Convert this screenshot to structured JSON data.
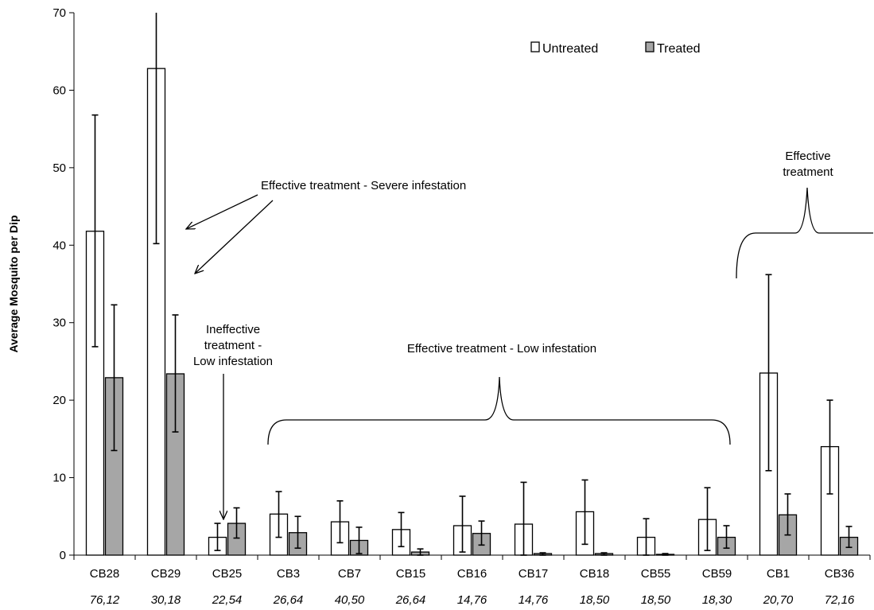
{
  "chart_data": {
    "type": "bar",
    "title": "",
    "xlabel": "",
    "ylabel": "Average Mosquito per Dip",
    "ylim": [
      0,
      70
    ],
    "yticks": [
      "0",
      "10",
      "20",
      "30",
      "40",
      "50",
      "60",
      "70"
    ],
    "grid": false,
    "legend_position": "top-right",
    "categories": [
      "CB28",
      "CB29",
      "CB25",
      "CB3",
      "CB7",
      "CB15",
      "CB16",
      "CB17",
      "CB18",
      "CB55",
      "CB59",
      "CB1",
      "CB36"
    ],
    "sublabels": [
      "76,12",
      "30,18",
      "22,54",
      "26,64",
      "40,50",
      "26,64",
      "14,76",
      "14,76",
      "18,50",
      "18,50",
      "18,30",
      "20,70",
      "72,16"
    ],
    "series": [
      {
        "name": "Untreated",
        "color": "#ffffff",
        "values": [
          41.8,
          62.8,
          2.3,
          5.3,
          4.3,
          3.3,
          3.8,
          4.0,
          5.6,
          2.3,
          4.6,
          23.5,
          14.0
        ],
        "err_low": [
          26.9,
          40.2,
          0.6,
          2.3,
          1.6,
          1.1,
          0.4,
          0.0,
          1.4,
          0.0,
          0.6,
          10.9,
          7.9
        ],
        "err_high": [
          56.8,
          70.0,
          4.1,
          8.2,
          7.0,
          5.5,
          7.6,
          9.4,
          9.7,
          4.7,
          8.7,
          36.2,
          20.0
        ]
      },
      {
        "name": "Treated",
        "color": "#a6a6a6",
        "values": [
          22.9,
          23.4,
          4.1,
          2.9,
          1.9,
          0.4,
          2.8,
          0.2,
          0.2,
          0.1,
          2.3,
          5.2,
          2.3
        ],
        "err_low": [
          13.5,
          15.9,
          2.2,
          0.9,
          0.2,
          0.0,
          1.3,
          0.0,
          0.0,
          0.0,
          0.9,
          2.6,
          1.0
        ],
        "err_high": [
          32.3,
          31.0,
          6.1,
          5.0,
          3.6,
          0.8,
          4.4,
          0.3,
          0.3,
          0.2,
          3.8,
          7.9,
          3.7
        ]
      }
    ],
    "annotations": {
      "severe": "Effective treatment - Severe infestation",
      "ineffective_1": "Ineffective",
      "ineffective_2": "treatment -",
      "ineffective_3": "Low infestation",
      "low": "Effective treatment - Low infestation",
      "effective_1": "Effective",
      "effective_2": "treatment"
    }
  }
}
